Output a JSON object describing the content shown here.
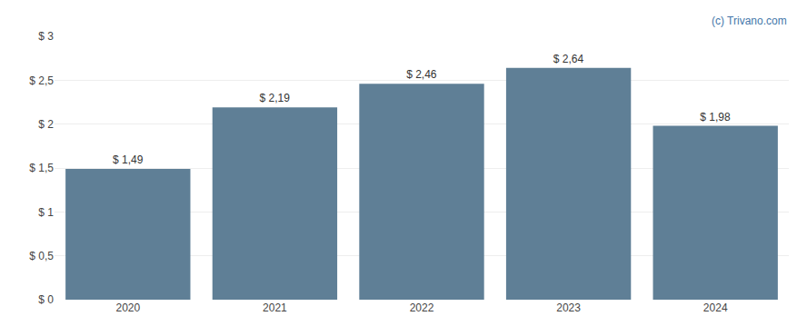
{
  "chart_data": {
    "type": "bar",
    "categories": [
      "2020",
      "2021",
      "2022",
      "2023",
      "2024"
    ],
    "values": [
      1.49,
      2.19,
      2.46,
      2.64,
      1.98
    ],
    "value_labels": [
      "$ 1,49",
      "$ 2,19",
      "$ 2,46",
      "$ 2,64",
      "$ 1,98"
    ],
    "data_labels": true,
    "color": "#5f7f96",
    "ylim": [
      0,
      3.0
    ],
    "yticks": [
      {
        "value": 0,
        "label": "$ 0"
      },
      {
        "value": 0.5,
        "label": "$ 0,5"
      },
      {
        "value": 1.0,
        "label": "$ 1"
      },
      {
        "value": 1.5,
        "label": "$ 1,5"
      },
      {
        "value": 2.0,
        "label": "$ 2"
      },
      {
        "value": 2.5,
        "label": "$ 2,5"
      },
      {
        "value": 3.0,
        "label": "$ 3"
      }
    ],
    "grid": true,
    "annotations": [
      {
        "text": "(c) Trivano.com",
        "color": "#4477aa"
      }
    ]
  }
}
